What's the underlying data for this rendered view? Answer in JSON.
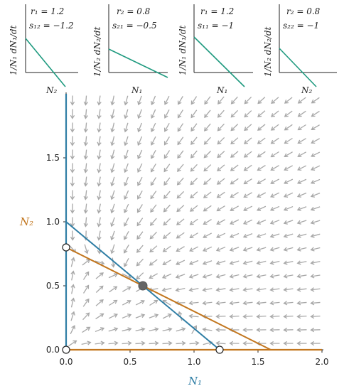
{
  "colors": {
    "species1": "#2f7ea5",
    "species2": "#c2761e",
    "steep_line": "#1f9a7f",
    "arrow": "#a8a8a8",
    "axis": "#222222"
  },
  "panels": [
    {
      "ylabel": "1/N₁ dN₁/dt",
      "ylabel_color": "species1",
      "xlabel": "N₂",
      "xlabel_color": "species2",
      "r_text": "r₁ = 1.2",
      "s_text": "s₁₂ = −1.2"
    },
    {
      "ylabel": "1/N₂ dN₂/dt",
      "ylabel_color": "species2",
      "xlabel": "N₁",
      "xlabel_color": "species1",
      "r_text": "r₂ = 0.8",
      "s_text": "s₂₁ = −0.5"
    },
    {
      "ylabel": "1/N₁ dN₁/dt",
      "ylabel_color": "species1",
      "xlabel": "N₁",
      "xlabel_color": "species1",
      "r_text": "r₁ = 1.2",
      "s_text": "s₁₁ = −1"
    },
    {
      "ylabel": "1/N₂ dN₂/dt",
      "ylabel_color": "species2",
      "xlabel": "N₂",
      "xlabel_color": "species2",
      "r_text": "r₂ = 0.8",
      "s_text": "s₂₂ = −1"
    }
  ],
  "phase_plane": {
    "xlabel": "N₁",
    "ylabel": "N₂",
    "xticks": [
      "0.0",
      "0.5",
      "1.0",
      "1.5",
      "2.0"
    ],
    "yticks": [
      "0.0",
      "0.5",
      "1.0",
      "1.5"
    ],
    "xlim": [
      0,
      2
    ],
    "ylim": [
      0,
      2
    ],
    "params": {
      "r1": 1.2,
      "r2": 0.8,
      "s11": -1,
      "s12": -1.2,
      "s21": -0.5,
      "s22": -1
    },
    "equilibria": [
      {
        "N1": 0,
        "N2": 0,
        "stable": false
      },
      {
        "N1": 1.2,
        "N2": 0,
        "stable": false
      },
      {
        "N1": 0,
        "N2": 0.8,
        "stable": false
      },
      {
        "N1": 0.6,
        "N2": 0.5,
        "stable": true
      }
    ]
  }
}
